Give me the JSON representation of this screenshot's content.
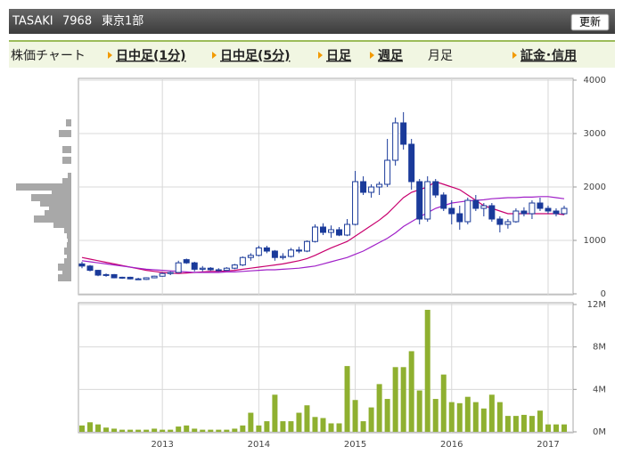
{
  "header": {
    "name": "TASAKI",
    "code": "7968",
    "market": "東京1部",
    "button": "更新"
  },
  "tabs": {
    "label": "株価チャート",
    "items": [
      "日中足(1分)",
      "日中足(5分)",
      "日足",
      "週足",
      "月足",
      "証金･信用"
    ],
    "current": "月足"
  },
  "chart_data": [
    {
      "type": "candlestick",
      "grid": true,
      "up_color": "#ffffff",
      "down_color": "#1a3a9a",
      "edge_color": "#1a3a9a",
      "categories": [
        null,
        null,
        null,
        null,
        null,
        null,
        null,
        null,
        null,
        null,
        "2013",
        null,
        null,
        null,
        null,
        null,
        null,
        null,
        null,
        null,
        null,
        null,
        "2014",
        null,
        null,
        null,
        null,
        null,
        null,
        null,
        null,
        null,
        null,
        null,
        "2015",
        null,
        null,
        null,
        null,
        null,
        null,
        null,
        null,
        null,
        null,
        null,
        "2016",
        null,
        null,
        null,
        null,
        null,
        null,
        null,
        null,
        null,
        null,
        null,
        "2017",
        null,
        null
      ],
      "open": [
        560,
        520,
        440,
        350,
        360,
        300,
        310,
        280,
        270,
        300,
        330,
        380,
        400,
        640,
        580,
        460,
        480,
        450,
        440,
        480,
        540,
        680,
        720,
        860,
        800,
        680,
        700,
        820,
        800,
        980,
        1250,
        1150,
        1200,
        1100,
        1300,
        2100,
        1900,
        2000,
        2050,
        2500,
        3200,
        2800,
        2100,
        1400,
        2100,
        1850,
        1600,
        1500,
        1350,
        1750,
        1600,
        1650,
        1400,
        1300,
        1350,
        1550,
        1500,
        1700,
        1600,
        1550,
        1500
      ],
      "high": [
        600,
        540,
        450,
        380,
        370,
        320,
        320,
        300,
        310,
        340,
        400,
        420,
        620,
        660,
        600,
        520,
        500,
        480,
        500,
        560,
        700,
        760,
        900,
        900,
        820,
        760,
        860,
        880,
        1000,
        1300,
        1320,
        1280,
        1250,
        1400,
        2300,
        2200,
        2050,
        2100,
        2900,
        3300,
        3400,
        2900,
        2150,
        2200,
        2150,
        1900,
        1750,
        1650,
        1800,
        1850,
        1700,
        1700,
        1450,
        1400,
        1600,
        1620,
        1750,
        1800,
        1650,
        1600,
        1650
      ],
      "low": [
        480,
        420,
        330,
        320,
        290,
        280,
        270,
        260,
        260,
        290,
        320,
        350,
        390,
        560,
        420,
        420,
        430,
        420,
        430,
        460,
        520,
        620,
        700,
        760,
        620,
        640,
        680,
        760,
        780,
        960,
        1100,
        1050,
        1080,
        1080,
        1280,
        1850,
        1800,
        1850,
        2000,
        2400,
        2700,
        1950,
        1300,
        1350,
        1800,
        1550,
        1300,
        1200,
        1300,
        1550,
        1450,
        1350,
        1150,
        1220,
        1330,
        1450,
        1400,
        1550,
        1500,
        1450,
        1480
      ],
      "close": [
        520,
        440,
        350,
        360,
        300,
        310,
        280,
        270,
        300,
        330,
        380,
        400,
        580,
        580,
        460,
        480,
        450,
        440,
        480,
        540,
        680,
        720,
        860,
        800,
        680,
        700,
        820,
        800,
        980,
        1250,
        1150,
        1200,
        1100,
        1300,
        2100,
        1900,
        2000,
        2050,
        2500,
        3200,
        2800,
        2100,
        1400,
        2100,
        1850,
        1600,
        1500,
        1350,
        1750,
        1600,
        1650,
        1400,
        1300,
        1350,
        1550,
        1500,
        1700,
        1600,
        1550,
        1500,
        1600
      ],
      "moving_averages": [
        {
          "color": "#c8006e",
          "values": [
            680,
            650,
            620,
            590,
            560,
            530,
            500,
            470,
            440,
            420,
            400,
            390,
            380,
            390,
            400,
            410,
            420,
            420,
            430,
            440,
            460,
            480,
            500,
            520,
            540,
            560,
            590,
            620,
            660,
            720,
            790,
            860,
            920,
            980,
            1080,
            1180,
            1280,
            1380,
            1500,
            1650,
            1800,
            1900,
            1950,
            2000,
            2100,
            2050,
            2000,
            1950,
            1850,
            1750,
            1650,
            1600,
            1550,
            1500,
            1500,
            1500,
            1500,
            1500,
            1500,
            1500,
            1480
          ]
        },
        {
          "color": "#a020c8",
          "values": [
            620,
            600,
            580,
            560,
            540,
            520,
            500,
            480,
            460,
            450,
            440,
            430,
            420,
            410,
            400,
            400,
            400,
            400,
            410,
            410,
            420,
            430,
            440,
            450,
            450,
            460,
            470,
            480,
            500,
            520,
            560,
            600,
            640,
            680,
            740,
            800,
            880,
            960,
            1040,
            1140,
            1260,
            1350,
            1440,
            1520,
            1600,
            1650,
            1700,
            1720,
            1740,
            1750,
            1760,
            1780,
            1790,
            1800,
            1800,
            1810,
            1810,
            1820,
            1820,
            1800,
            1780
          ]
        }
      ],
      "ylim": [
        0,
        4000
      ],
      "yticks": [
        0,
        1000,
        2000,
        3000,
        4000
      ]
    },
    {
      "type": "bar",
      "grid": true,
      "color": "#8fb030",
      "values": [
        600000,
        900000,
        700000,
        400000,
        300000,
        200000,
        200000,
        200000,
        200000,
        300000,
        200000,
        200000,
        500000,
        600000,
        300000,
        200000,
        200000,
        200000,
        200000,
        300000,
        600000,
        1800000,
        600000,
        1000000,
        3500000,
        1000000,
        1000000,
        1800000,
        2500000,
        1400000,
        1300000,
        800000,
        800000,
        6200000,
        3000000,
        1000000,
        2300000,
        4500000,
        3100000,
        6100000,
        6100000,
        7600000,
        3900000,
        11500000,
        3100000,
        5400000,
        2800000,
        2700000,
        3300000,
        2800000,
        2200000,
        3500000,
        2800000,
        1500000,
        1500000,
        1600000,
        1500000,
        2000000,
        700000,
        700000,
        700000
      ],
      "ylim": [
        0,
        12000000
      ],
      "yticks": [
        {
          "value": 0,
          "label": "0M"
        },
        {
          "value": 4000000,
          "label": "4M"
        },
        {
          "value": 8000000,
          "label": "8M"
        },
        {
          "value": 12000000,
          "label": "12M"
        }
      ]
    },
    {
      "type": "profile",
      "color": "#a8a8a8",
      "prices": [
        300,
        400,
        500,
        600,
        700,
        800,
        900,
        1000,
        1100,
        1200,
        1300,
        1400,
        1500,
        1600,
        1700,
        1800,
        1900,
        2000,
        2100,
        2200,
        2500,
        2700,
        3000,
        3200
      ],
      "values": [
        7500000,
        5000000,
        7500000,
        4000000,
        2500000,
        4000000,
        2500000,
        2000000,
        2500000,
        4000000,
        10000000,
        21000000,
        15000000,
        12500000,
        17500000,
        22500000,
        11000000,
        31000000,
        5000000,
        2000000,
        5000000,
        5000000,
        7000000,
        3000000
      ]
    }
  ]
}
